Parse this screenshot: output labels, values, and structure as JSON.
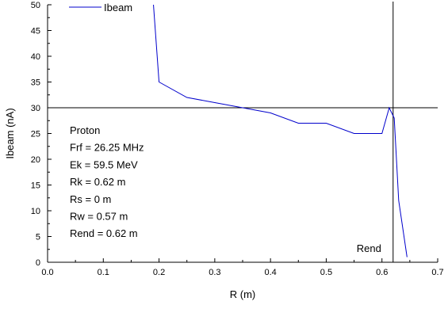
{
  "chart_data": {
    "type": "line",
    "title": "",
    "xlabel": "R (m)",
    "ylabel": "Ibeam (nA)",
    "xlim": [
      0.0,
      0.7
    ],
    "ylim": [
      0,
      50
    ],
    "x_ticks": [
      0.0,
      0.1,
      0.2,
      0.3,
      0.4,
      0.5,
      0.6,
      0.7
    ],
    "x_tick_labels": [
      "0.0",
      "0.1",
      "0.2",
      "0.3",
      "0.4",
      "0.5",
      "0.6",
      "0.7"
    ],
    "y_ticks": [
      0,
      5,
      10,
      15,
      20,
      25,
      30,
      35,
      40,
      45,
      50
    ],
    "y_tick_labels": [
      "0",
      "5",
      "10",
      "15",
      "20",
      "25",
      "30",
      "35",
      "40",
      "45",
      "50"
    ],
    "grid": false,
    "legend": {
      "position": "top-left",
      "entries": [
        "Ibeam"
      ]
    },
    "series": [
      {
        "name": "Ibeam",
        "color": "#0000cc",
        "x": [
          0.19,
          0.2,
          0.25,
          0.3,
          0.35,
          0.4,
          0.45,
          0.5,
          0.55,
          0.6,
          0.613,
          0.622,
          0.63,
          0.645
        ],
        "y": [
          50,
          35,
          32,
          31,
          30,
          29,
          27,
          27,
          25,
          25,
          30,
          28,
          12,
          1
        ]
      }
    ],
    "reference_lines": {
      "horizontal_y": 30,
      "vertical_x": 0.62,
      "color": "#000000"
    },
    "annotations": {
      "vertical_line_label": "Rend",
      "parameters": [
        "Proton",
        "Frf = 26.25 MHz",
        "Ek = 59.5 MeV",
        "Rk = 0.62 m",
        "Rs = 0 m",
        "Rw = 0.57 m",
        "Rend = 0.62 m"
      ]
    }
  }
}
